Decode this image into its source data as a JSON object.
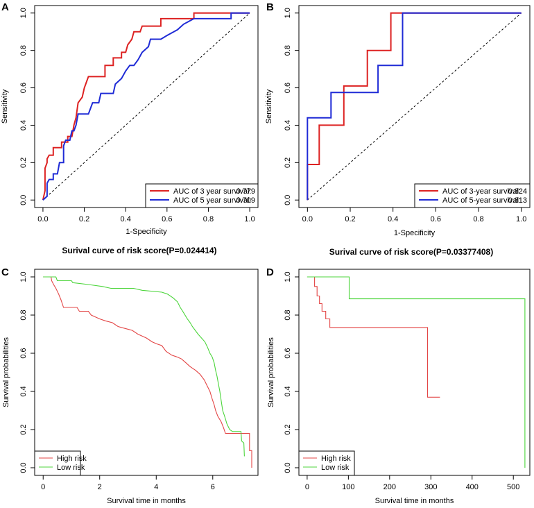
{
  "chart_data": [
    {
      "panel": "A",
      "type": "line",
      "title": "",
      "xlabel": "1-Specificity",
      "ylabel": "Sensitivity",
      "xlim": [
        0,
        1
      ],
      "ylim": [
        0,
        1
      ],
      "xticks": [
        "0.0",
        "0.2",
        "0.4",
        "0.6",
        "0.8",
        "1.0"
      ],
      "yticks": [
        "0.0",
        "0.2",
        "0.4",
        "0.6",
        "0.8",
        "1.0"
      ],
      "legend_position": "bottom-right",
      "reference_line": "diagonal-dashed",
      "series": [
        {
          "name": "AUC of 3 year survival:",
          "auc": "0.779",
          "color": "#dd2222",
          "points": [
            [
              0,
              0
            ],
            [
              0.01,
              0.05
            ],
            [
              0.01,
              0.17
            ],
            [
              0.02,
              0.2
            ],
            [
              0.02,
              0.22
            ],
            [
              0.03,
              0.24
            ],
            [
              0.05,
              0.24
            ],
            [
              0.05,
              0.28
            ],
            [
              0.09,
              0.28
            ],
            [
              0.09,
              0.31
            ],
            [
              0.12,
              0.31
            ],
            [
              0.12,
              0.34
            ],
            [
              0.14,
              0.34
            ],
            [
              0.15,
              0.4
            ],
            [
              0.16,
              0.44
            ],
            [
              0.17,
              0.52
            ],
            [
              0.19,
              0.55
            ],
            [
              0.2,
              0.6
            ],
            [
              0.22,
              0.66
            ],
            [
              0.3,
              0.66
            ],
            [
              0.3,
              0.72
            ],
            [
              0.34,
              0.72
            ],
            [
              0.34,
              0.76
            ],
            [
              0.38,
              0.76
            ],
            [
              0.38,
              0.79
            ],
            [
              0.4,
              0.79
            ],
            [
              0.41,
              0.83
            ],
            [
              0.43,
              0.86
            ],
            [
              0.44,
              0.9
            ],
            [
              0.47,
              0.9
            ],
            [
              0.48,
              0.93
            ],
            [
              0.57,
              0.93
            ],
            [
              0.57,
              0.97
            ],
            [
              0.73,
              0.97
            ],
            [
              0.73,
              1
            ],
            [
              1,
              1
            ]
          ]
        },
        {
          "name": "AUC of 5 year survival:",
          "auc": "0.709",
          "color": "#1f2bd6",
          "points": [
            [
              0,
              0
            ],
            [
              0.02,
              0.02
            ],
            [
              0.02,
              0.09
            ],
            [
              0.03,
              0.11
            ],
            [
              0.05,
              0.11
            ],
            [
              0.05,
              0.14
            ],
            [
              0.07,
              0.14
            ],
            [
              0.08,
              0.2
            ],
            [
              0.1,
              0.2
            ],
            [
              0.1,
              0.29
            ],
            [
              0.11,
              0.32
            ],
            [
              0.13,
              0.32
            ],
            [
              0.14,
              0.37
            ],
            [
              0.15,
              0.37
            ],
            [
              0.16,
              0.4
            ],
            [
              0.17,
              0.46
            ],
            [
              0.22,
              0.46
            ],
            [
              0.24,
              0.52
            ],
            [
              0.27,
              0.52
            ],
            [
              0.28,
              0.57
            ],
            [
              0.34,
              0.57
            ],
            [
              0.35,
              0.62
            ],
            [
              0.38,
              0.65
            ],
            [
              0.4,
              0.69
            ],
            [
              0.42,
              0.72
            ],
            [
              0.44,
              0.72
            ],
            [
              0.46,
              0.75
            ],
            [
              0.48,
              0.79
            ],
            [
              0.51,
              0.82
            ],
            [
              0.52,
              0.86
            ],
            [
              0.57,
              0.86
            ],
            [
              0.6,
              0.88
            ],
            [
              0.65,
              0.91
            ],
            [
              0.68,
              0.94
            ],
            [
              0.73,
              0.97
            ],
            [
              0.91,
              0.97
            ],
            [
              0.91,
              1
            ],
            [
              1,
              1
            ]
          ]
        }
      ]
    },
    {
      "panel": "B",
      "type": "line",
      "title": "",
      "xlabel": "1-Specificity",
      "ylabel": "Sensitivity",
      "xlim": [
        0,
        1
      ],
      "ylim": [
        0,
        1
      ],
      "xticks": [
        "0.0",
        "0.2",
        "0.4",
        "0.6",
        "0.8",
        "1.0"
      ],
      "yticks": [
        "0.0",
        "0.2",
        "0.4",
        "0.6",
        "0.8",
        "1.0"
      ],
      "legend_position": "bottom-right",
      "reference_line": "diagonal-dashed",
      "series": [
        {
          "name": "AUC of 3-year survival:",
          "auc": "0.824",
          "color": "#dd2222",
          "points": [
            [
              0,
              0
            ],
            [
              0,
              0.19
            ],
            [
              0.055,
              0.19
            ],
            [
              0.055,
              0.4
            ],
            [
              0.17,
              0.4
            ],
            [
              0.17,
              0.61
            ],
            [
              0.28,
              0.61
            ],
            [
              0.28,
              0.8
            ],
            [
              0.39,
              0.8
            ],
            [
              0.39,
              1
            ],
            [
              1,
              1
            ]
          ]
        },
        {
          "name": "AUC of 5-year survival:",
          "auc": "0.813",
          "color": "#1f2bd6",
          "points": [
            [
              0,
              0
            ],
            [
              0,
              0.44
            ],
            [
              0.11,
              0.44
            ],
            [
              0.11,
              0.575
            ],
            [
              0.33,
              0.575
            ],
            [
              0.33,
              0.72
            ],
            [
              0.445,
              0.72
            ],
            [
              0.445,
              1
            ],
            [
              1,
              1
            ]
          ]
        }
      ]
    },
    {
      "panel": "C",
      "type": "line",
      "title": "Surival curve of risk score(P=0.024414)",
      "xlabel": "Survival time in months",
      "ylabel": "Survival probabilities",
      "xlim": [
        -0.3,
        7.6
      ],
      "ylim": [
        -0.04,
        1.04
      ],
      "xticks": [
        "0",
        "2",
        "4",
        "6"
      ],
      "yticks": [
        "0.0",
        "0.2",
        "0.4",
        "0.6",
        "0.8",
        "1.0"
      ],
      "legend_position": "bottom-left",
      "series": [
        {
          "name": "High risk",
          "color": "#e34545",
          "points": [
            [
              0,
              1
            ],
            [
              0.28,
              1
            ],
            [
              0.3,
              0.98
            ],
            [
              0.37,
              0.96
            ],
            [
              0.45,
              0.94
            ],
            [
              0.55,
              0.91
            ],
            [
              0.63,
              0.88
            ],
            [
              0.72,
              0.84
            ],
            [
              1.2,
              0.84
            ],
            [
              1.28,
              0.82
            ],
            [
              1.6,
              0.82
            ],
            [
              1.7,
              0.8
            ],
            [
              1.85,
              0.79
            ],
            [
              2.0,
              0.78
            ],
            [
              2.2,
              0.77
            ],
            [
              2.45,
              0.76
            ],
            [
              2.65,
              0.74
            ],
            [
              2.9,
              0.73
            ],
            [
              3.15,
              0.72
            ],
            [
              3.35,
              0.7
            ],
            [
              3.5,
              0.69
            ],
            [
              3.65,
              0.68
            ],
            [
              3.85,
              0.66
            ],
            [
              4.0,
              0.65
            ],
            [
              4.2,
              0.64
            ],
            [
              4.35,
              0.61
            ],
            [
              4.55,
              0.59
            ],
            [
              4.75,
              0.58
            ],
            [
              4.9,
              0.57
            ],
            [
              5.05,
              0.55
            ],
            [
              5.2,
              0.53
            ],
            [
              5.4,
              0.51
            ],
            [
              5.55,
              0.49
            ],
            [
              5.7,
              0.46
            ],
            [
              5.8,
              0.43
            ],
            [
              5.9,
              0.4
            ],
            [
              5.98,
              0.36
            ],
            [
              6.05,
              0.33
            ],
            [
              6.1,
              0.3
            ],
            [
              6.18,
              0.27
            ],
            [
              6.3,
              0.24
            ],
            [
              6.38,
              0.21
            ],
            [
              6.45,
              0.18
            ],
            [
              7.3,
              0.18
            ],
            [
              7.3,
              0.09
            ],
            [
              7.38,
              0.09
            ],
            [
              7.38,
              0.0
            ]
          ]
        },
        {
          "name": "Low risk",
          "color": "#4cd53b",
          "points": [
            [
              0,
              1
            ],
            [
              0.45,
              1
            ],
            [
              0.5,
              0.98
            ],
            [
              1.0,
              0.98
            ],
            [
              1.05,
              0.97
            ],
            [
              1.6,
              0.96
            ],
            [
              2.1,
              0.95
            ],
            [
              2.4,
              0.94
            ],
            [
              3.2,
              0.94
            ],
            [
              3.5,
              0.93
            ],
            [
              4.2,
              0.92
            ],
            [
              4.4,
              0.91
            ],
            [
              4.6,
              0.89
            ],
            [
              4.75,
              0.87
            ],
            [
              4.85,
              0.84
            ],
            [
              4.98,
              0.81
            ],
            [
              5.1,
              0.78
            ],
            [
              5.2,
              0.76
            ],
            [
              5.28,
              0.74
            ],
            [
              5.38,
              0.72
            ],
            [
              5.48,
              0.7
            ],
            [
              5.6,
              0.68
            ],
            [
              5.72,
              0.66
            ],
            [
              5.82,
              0.63
            ],
            [
              5.9,
              0.6
            ],
            [
              5.98,
              0.58
            ],
            [
              6.05,
              0.55
            ],
            [
              6.1,
              0.51
            ],
            [
              6.15,
              0.48
            ],
            [
              6.2,
              0.44
            ],
            [
              6.25,
              0.4
            ],
            [
              6.3,
              0.35
            ],
            [
              6.35,
              0.3
            ],
            [
              6.42,
              0.27
            ],
            [
              6.5,
              0.23
            ],
            [
              6.6,
              0.2
            ],
            [
              6.7,
              0.19
            ],
            [
              7.0,
              0.19
            ],
            [
              7.02,
              0.14
            ],
            [
              7.1,
              0.13
            ],
            [
              7.12,
              0.06
            ]
          ]
        }
      ]
    },
    {
      "panel": "D",
      "type": "line",
      "title": "Surival curve of risk score(P=0.03377408)",
      "xlabel": "Survival time in months",
      "ylabel": "Survival probabilities",
      "xlim": [
        -20,
        540
      ],
      "ylim": [
        -0.04,
        1.04
      ],
      "xticks": [
        "0",
        "100",
        "200",
        "300",
        "400",
        "500"
      ],
      "yticks": [
        "0.0",
        "0.2",
        "0.4",
        "0.6",
        "0.8",
        "1.0"
      ],
      "legend_position": "bottom-left",
      "series": [
        {
          "name": "High risk",
          "color": "#e34545",
          "points": [
            [
              0,
              1
            ],
            [
              18,
              1
            ],
            [
              18,
              0.95
            ],
            [
              24,
              0.95
            ],
            [
              24,
              0.9
            ],
            [
              30,
              0.9
            ],
            [
              30,
              0.86
            ],
            [
              36,
              0.86
            ],
            [
              36,
              0.82
            ],
            [
              45,
              0.82
            ],
            [
              45,
              0.78
            ],
            [
              55,
              0.78
            ],
            [
              55,
              0.735
            ],
            [
              292,
              0.735
            ],
            [
              292,
              0.37
            ],
            [
              322,
              0.37
            ]
          ]
        },
        {
          "name": "Low risk",
          "color": "#4cd53b",
          "points": [
            [
              0,
              1
            ],
            [
              102,
              1
            ],
            [
              102,
              0.885
            ],
            [
              528,
              0.885
            ],
            [
              528,
              0.0
            ]
          ]
        }
      ]
    }
  ]
}
